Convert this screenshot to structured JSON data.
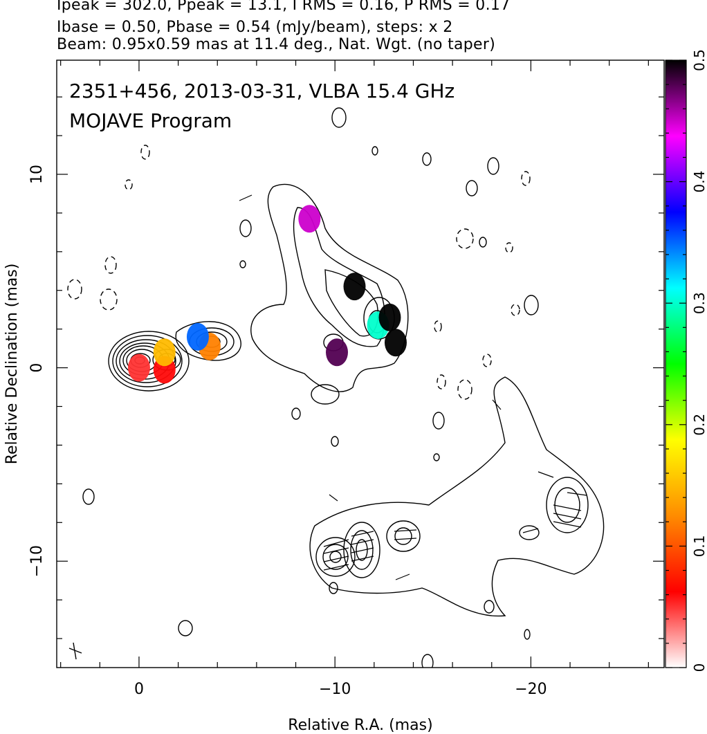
{
  "header": {
    "line1": "Ipeak = 302.0, Ppeak = 13.1, I RMS = 0.16, P RMS = 0.17",
    "line2": "Ibase = 0.50, Pbase = 0.54 (mJy/beam), steps: x 2",
    "line3": "Beam: 0.95x0.59 mas at 11.4 deg., Nat. Wgt. (no taper)"
  },
  "chart_data": {
    "type": "heatmap",
    "title_line1": "2351+456, 2013-03-31, VLBA 15.4 GHz",
    "title_line2": "MOJAVE Program",
    "xlabel": "Relative R.A. (mas)",
    "ylabel": "Relative Declination (mas)",
    "xlim": [
      4.2,
      -26.8
    ],
    "ylim": [
      -15.5,
      15.9
    ],
    "x_ticks": [
      0,
      -10,
      -20
    ],
    "y_ticks": [
      -10,
      0,
      10
    ],
    "grid": false,
    "colorbar": {
      "min": 0,
      "max": 0.5,
      "ticks": [
        0,
        0.1,
        0.2,
        0.3,
        0.4,
        0.5
      ],
      "stops": [
        "#ffffff",
        "#ff0000",
        "#ff8c00",
        "#ffff00",
        "#00ff00",
        "#00ffff",
        "#0000ff",
        "#ff00ff",
        "#000000"
      ]
    },
    "polarization_patches": [
      {
        "x": 0.0,
        "y": 0.0,
        "v": 0.05
      },
      {
        "x": -1.3,
        "y": -0.1,
        "v": 0.06
      },
      {
        "x": -1.3,
        "y": 0.8,
        "v": 0.15
      },
      {
        "x": -3.6,
        "y": 1.1,
        "v": 0.12
      },
      {
        "x": -3.0,
        "y": 1.6,
        "v": 0.35
      },
      {
        "x": -8.7,
        "y": 7.7,
        "v": 0.45
      },
      {
        "x": -10.1,
        "y": 0.8,
        "v": 0.48
      },
      {
        "x": -11.0,
        "y": 4.2,
        "v": 0.5
      },
      {
        "x": -12.2,
        "y": 2.2,
        "v": 0.3
      },
      {
        "x": -12.8,
        "y": 2.6,
        "v": 0.5
      },
      {
        "x": -13.1,
        "y": 1.3,
        "v": 0.5
      }
    ]
  }
}
